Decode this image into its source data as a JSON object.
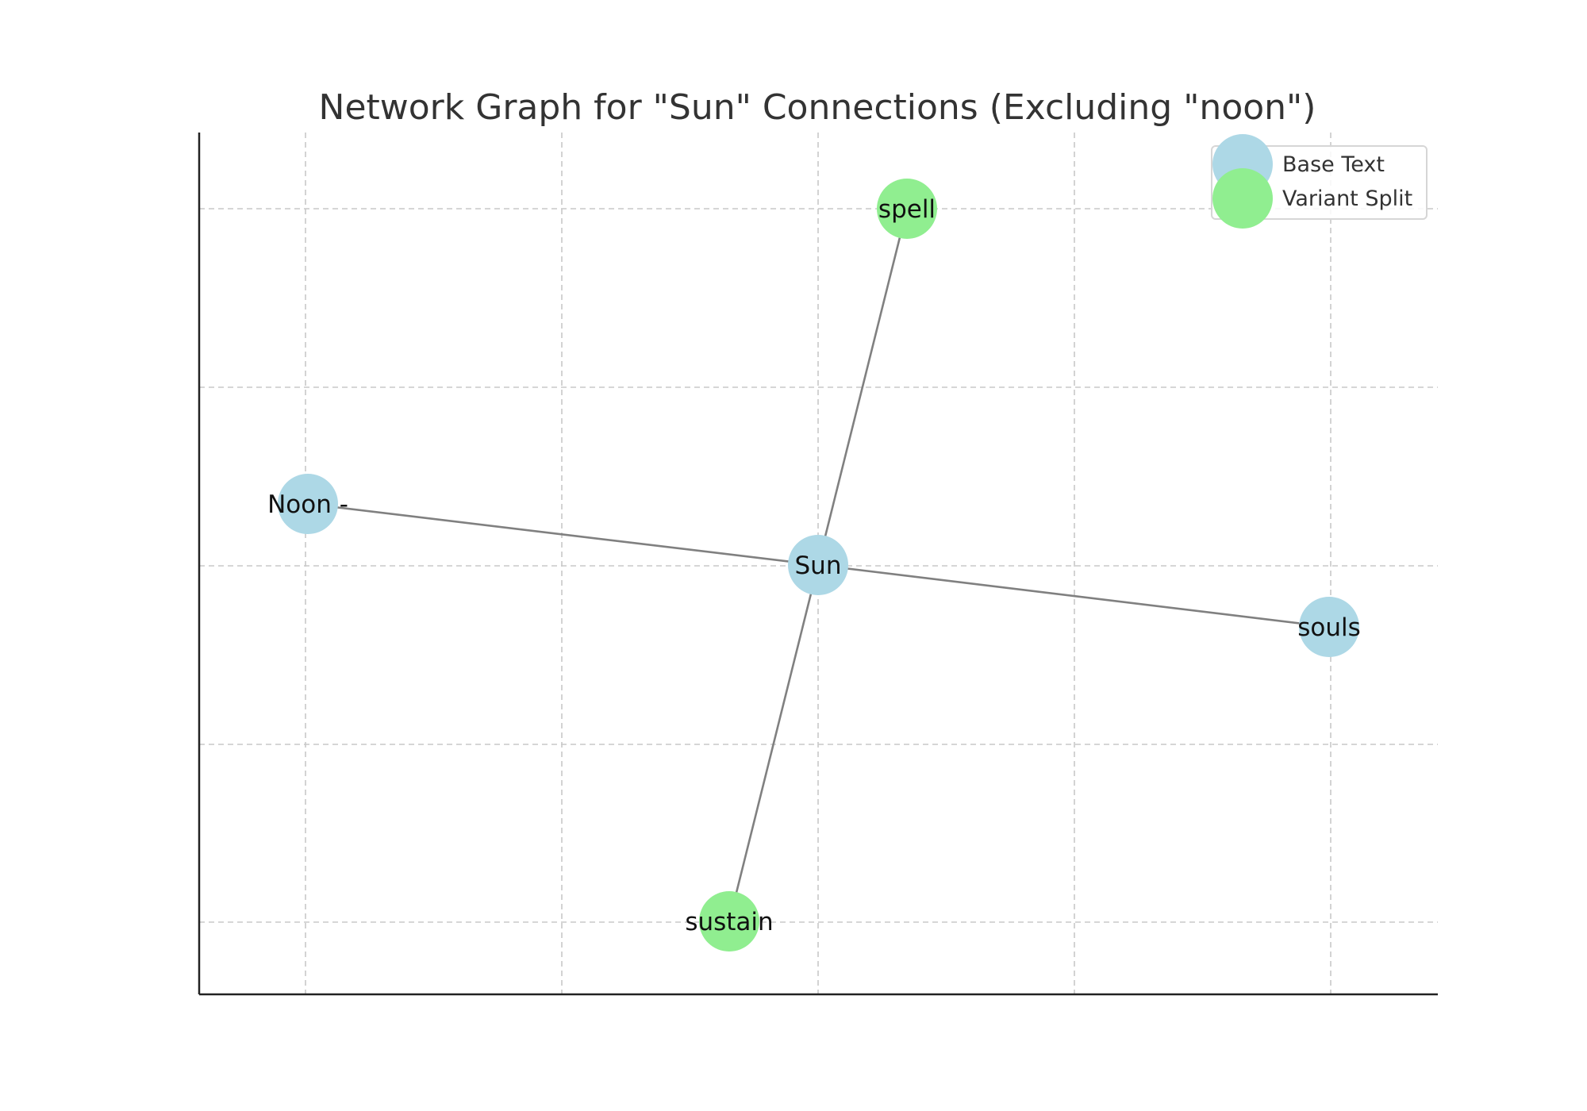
{
  "title": "Network Graph for \"Sun\" Connections (Excluding \"noon\")",
  "colors": {
    "base_text": "#add8e6",
    "variant_split": "#90ee90",
    "edge": "#808080",
    "grid": "#c8c8c8",
    "axis": "#222222"
  },
  "legend": {
    "placement": "upper-right",
    "items": [
      {
        "label": "Base Text",
        "color": "#add8e6"
      },
      {
        "label": "Variant Split",
        "color": "#90ee90"
      }
    ]
  },
  "graph": {
    "nodes": [
      {
        "id": "sun",
        "label": "Sun",
        "group": "Base Text"
      },
      {
        "id": "noon",
        "label": "Noon -",
        "group": "Base Text"
      },
      {
        "id": "souls",
        "label": "souls",
        "group": "Base Text"
      },
      {
        "id": "spell",
        "label": "spell",
        "group": "Variant Split"
      },
      {
        "id": "sustain",
        "label": "sustain",
        "group": "Variant Split"
      }
    ],
    "edges": [
      {
        "source": "sun",
        "target": "noon"
      },
      {
        "source": "sun",
        "target": "souls"
      },
      {
        "source": "sun",
        "target": "spell"
      },
      {
        "source": "sun",
        "target": "sustain"
      }
    ],
    "grid": true
  }
}
